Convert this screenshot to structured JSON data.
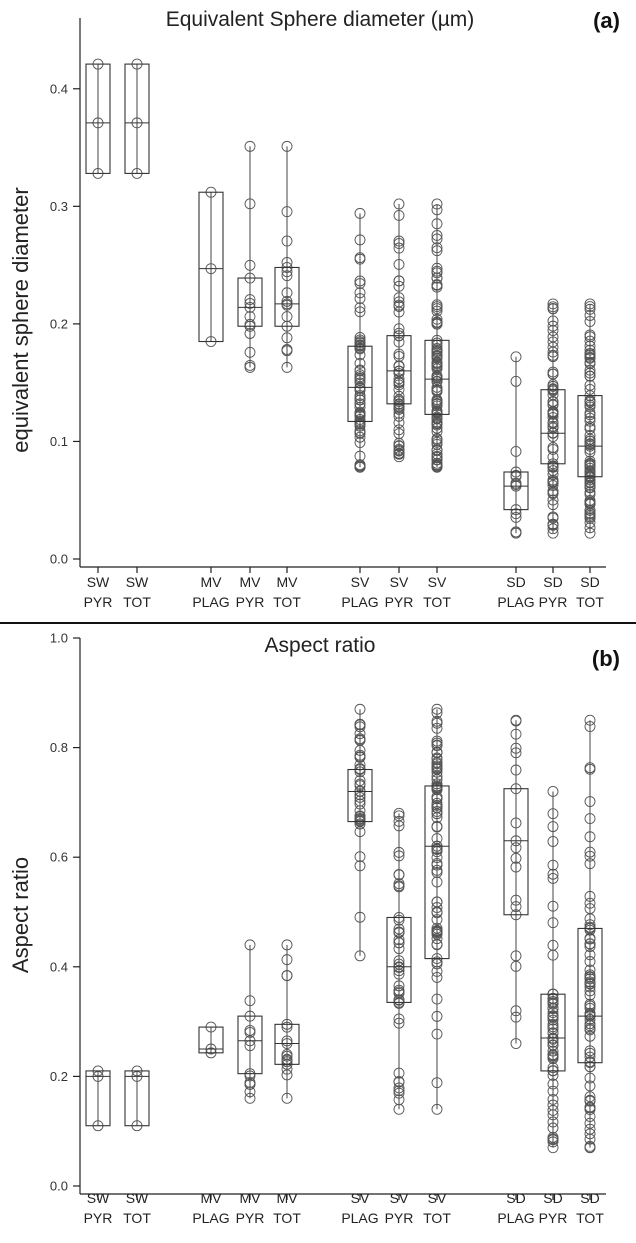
{
  "chart_data": [
    {
      "type": "box",
      "panel_letter": "(a)",
      "title": "Equivalent Sphere diameter (µm)",
      "ylabel": "equivalent sphere diameter",
      "ylim": [
        0,
        0.45
      ],
      "yticks": [
        "0.0",
        "0.1",
        "0.2",
        "0.3",
        "0.4"
      ],
      "ytick_values": [
        0,
        0.1,
        0.2,
        0.3,
        0.4
      ],
      "categories": [
        {
          "line1": "SW",
          "line2": "PYR",
          "group": 0,
          "slot": 0,
          "q1": 0.328,
          "median": 0.371,
          "q3": 0.421,
          "min": 0.328,
          "max": 0.421,
          "n_points": 3
        },
        {
          "line1": "SW",
          "line2": "TOT",
          "group": 0,
          "slot": 1,
          "q1": 0.328,
          "median": 0.371,
          "q3": 0.421,
          "min": 0.328,
          "max": 0.421,
          "n_points": 3
        },
        {
          "line1": "MV",
          "line2": "PLAG",
          "group": 1,
          "slot": 0,
          "q1": 0.185,
          "median": 0.247,
          "q3": 0.312,
          "min": 0.185,
          "max": 0.312,
          "n_points": 3
        },
        {
          "line1": "MV",
          "line2": "PYR",
          "group": 1,
          "slot": 1,
          "q1": 0.198,
          "median": 0.214,
          "q3": 0.239,
          "min": 0.163,
          "max": 0.351,
          "n_points": 14
        },
        {
          "line1": "MV",
          "line2": "TOT",
          "group": 1,
          "slot": 2,
          "q1": 0.198,
          "median": 0.217,
          "q3": 0.248,
          "min": 0.163,
          "max": 0.351,
          "n_points": 17
        },
        {
          "line1": "SV",
          "line2": "PLAG",
          "group": 2,
          "slot": 0,
          "q1": 0.117,
          "median": 0.146,
          "q3": 0.181,
          "min": 0.078,
          "max": 0.294,
          "n_points": 60
        },
        {
          "line1": "SV",
          "line2": "PYR",
          "group": 2,
          "slot": 1,
          "q1": 0.132,
          "median": 0.16,
          "q3": 0.19,
          "min": 0.087,
          "max": 0.302,
          "n_points": 60
        },
        {
          "line1": "SV",
          "line2": "TOT",
          "group": 2,
          "slot": 2,
          "q1": 0.123,
          "median": 0.153,
          "q3": 0.186,
          "min": 0.078,
          "max": 0.302,
          "n_points": 90
        },
        {
          "line1": "SD",
          "line2": "PLAG",
          "group": 3,
          "slot": 0,
          "q1": 0.042,
          "median": 0.062,
          "q3": 0.074,
          "min": 0.022,
          "max": 0.172,
          "n_points": 15
        },
        {
          "line1": "SD",
          "line2": "PYR",
          "group": 3,
          "slot": 1,
          "q1": 0.081,
          "median": 0.107,
          "q3": 0.144,
          "min": 0.022,
          "max": 0.217,
          "n_points": 70
        },
        {
          "line1": "SD",
          "line2": "TOT",
          "group": 3,
          "slot": 2,
          "q1": 0.07,
          "median": 0.096,
          "q3": 0.139,
          "min": 0.022,
          "max": 0.217,
          "n_points": 80
        }
      ]
    },
    {
      "type": "box",
      "panel_letter": "(b)",
      "title": "Aspect ratio",
      "ylabel": "Aspect ratio",
      "ylim": [
        0,
        1.0
      ],
      "yticks": [
        "0.0",
        "0.2",
        "0.4",
        "0.6",
        "0.8",
        "1.0"
      ],
      "ytick_values": [
        0,
        0.2,
        0.4,
        0.6,
        0.8,
        1.0
      ],
      "categories": [
        {
          "line1": "SW",
          "line2": "PYR",
          "group": 0,
          "slot": 0,
          "q1": 0.11,
          "median": 0.2,
          "q3": 0.21,
          "min": 0.11,
          "max": 0.21,
          "n_points": 3
        },
        {
          "line1": "SW",
          "line2": "TOT",
          "group": 0,
          "slot": 1,
          "q1": 0.11,
          "median": 0.2,
          "q3": 0.21,
          "min": 0.11,
          "max": 0.21,
          "n_points": 3
        },
        {
          "line1": "MV",
          "line2": "PLAG",
          "group": 1,
          "slot": 0,
          "q1": 0.243,
          "median": 0.25,
          "q3": 0.29,
          "min": 0.243,
          "max": 0.29,
          "n_points": 3
        },
        {
          "line1": "MV",
          "line2": "PYR",
          "group": 1,
          "slot": 1,
          "q1": 0.205,
          "median": 0.265,
          "q3": 0.31,
          "min": 0.16,
          "max": 0.44,
          "n_points": 14
        },
        {
          "line1": "MV",
          "line2": "TOT",
          "group": 1,
          "slot": 2,
          "q1": 0.222,
          "median": 0.26,
          "q3": 0.295,
          "min": 0.16,
          "max": 0.44,
          "n_points": 17
        },
        {
          "line1": "SV",
          "line2": "PLAG",
          "group": 2,
          "slot": 0,
          "q1": 0.665,
          "median": 0.72,
          "q3": 0.76,
          "min": 0.42,
          "max": 0.87,
          "n_points": 40
        },
        {
          "line1": "SV",
          "line2": "PYR",
          "group": 2,
          "slot": 1,
          "q1": 0.335,
          "median": 0.4,
          "q3": 0.49,
          "min": 0.14,
          "max": 0.68,
          "n_points": 45
        },
        {
          "line1": "SV",
          "line2": "TOT",
          "group": 2,
          "slot": 2,
          "q1": 0.415,
          "median": 0.62,
          "q3": 0.73,
          "min": 0.14,
          "max": 0.87,
          "n_points": 80
        },
        {
          "line1": "SD",
          "line2": "PLAG",
          "group": 3,
          "slot": 0,
          "q1": 0.495,
          "median": 0.63,
          "q3": 0.725,
          "min": 0.26,
          "max": 0.85,
          "n_points": 20
        },
        {
          "line1": "SD",
          "line2": "PYR",
          "group": 3,
          "slot": 1,
          "q1": 0.21,
          "median": 0.27,
          "q3": 0.35,
          "min": 0.07,
          "max": 0.72,
          "n_points": 60
        },
        {
          "line1": "SD",
          "line2": "TOT",
          "group": 3,
          "slot": 2,
          "q1": 0.225,
          "median": 0.31,
          "q3": 0.47,
          "min": 0.07,
          "max": 0.85,
          "n_points": 75
        }
      ]
    }
  ]
}
